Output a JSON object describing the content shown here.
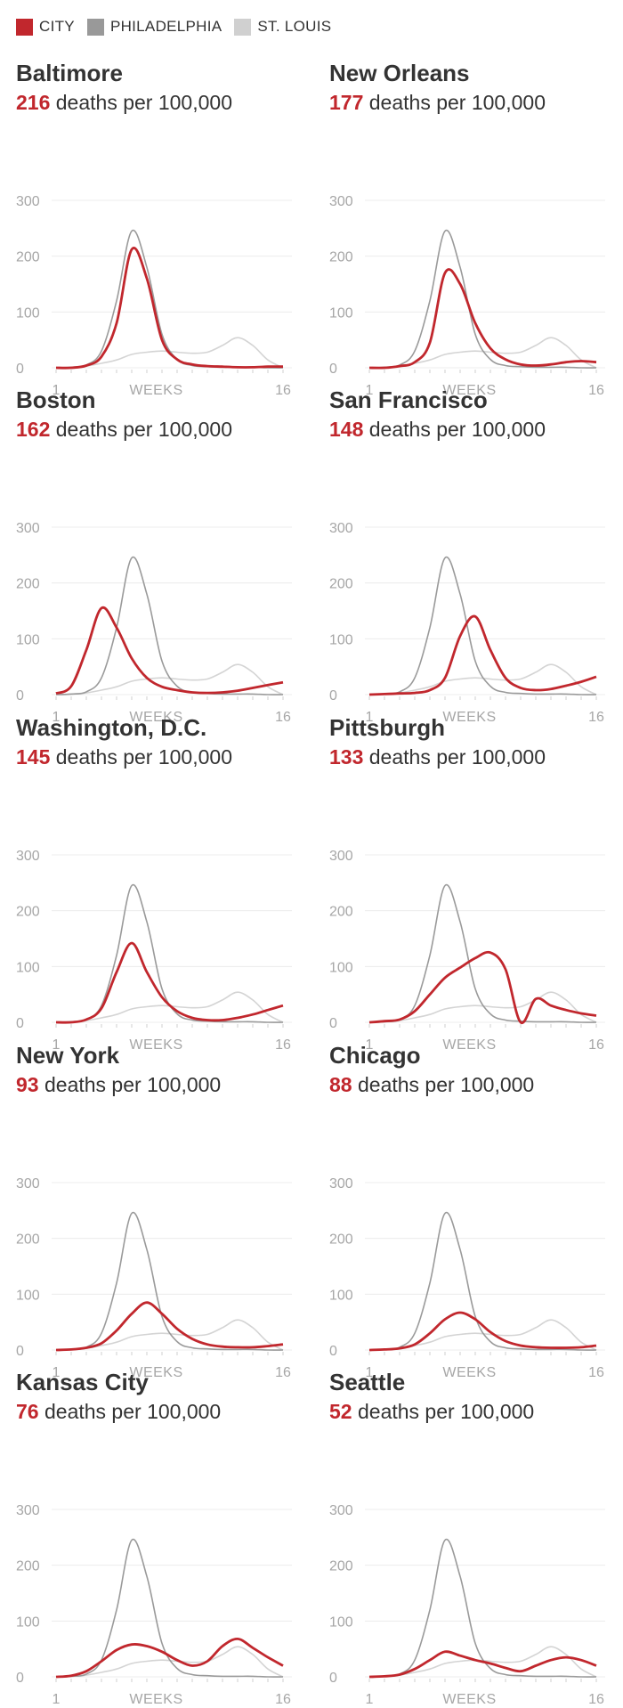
{
  "legend": {
    "items": [
      {
        "label": "CITY",
        "color": "#c1272d"
      },
      {
        "label": "PHILADELPHIA",
        "color": "#999999"
      },
      {
        "label": "ST. LOUIS",
        "color": "#d0d0d0"
      }
    ]
  },
  "deaths_unit": "deaths per 100,000",
  "axis": {
    "x_label": "WEEKS",
    "x_min_label": "1",
    "x_max_label": "16",
    "y_ticks": [
      "300",
      "200",
      "100",
      "0"
    ]
  },
  "cities": [
    {
      "name": "Baltimore",
      "rate": "216"
    },
    {
      "name": "New Orleans",
      "rate": "177"
    },
    {
      "name": "Boston",
      "rate": "162"
    },
    {
      "name": "San Francisco",
      "rate": "148"
    },
    {
      "name": "Washington, D.C.",
      "rate": "145"
    },
    {
      "name": "Pittsburgh",
      "rate": "133"
    },
    {
      "name": "New York",
      "rate": "93"
    },
    {
      "name": "Chicago",
      "rate": "88"
    },
    {
      "name": "Kansas City",
      "rate": "76"
    },
    {
      "name": "Seattle",
      "rate": "52"
    }
  ],
  "chart_data": {
    "type": "line",
    "x": [
      1,
      2,
      3,
      4,
      5,
      6,
      7,
      8,
      9,
      10,
      11,
      12,
      13,
      14,
      15,
      16
    ],
    "ylim": [
      0,
      300
    ],
    "xlabel": "WEEKS",
    "reference_series": [
      {
        "name": "PHILADELPHIA",
        "values": [
          0,
          1,
          5,
          30,
          120,
          245,
          180,
          60,
          15,
          4,
          2,
          1,
          1,
          1,
          0,
          0
        ]
      },
      {
        "name": "ST. LOUIS",
        "values": [
          0,
          1,
          3,
          8,
          14,
          24,
          28,
          30,
          28,
          26,
          28,
          40,
          54,
          40,
          14,
          0
        ]
      }
    ],
    "panels": [
      {
        "city": "Baltimore",
        "values": [
          0,
          0,
          4,
          20,
          80,
          212,
          160,
          50,
          15,
          6,
          3,
          2,
          1,
          1,
          2,
          2
        ]
      },
      {
        "city": "New Orleans",
        "values": [
          0,
          0,
          3,
          10,
          45,
          170,
          150,
          80,
          35,
          15,
          6,
          4,
          6,
          10,
          12,
          10
        ]
      },
      {
        "city": "Boston",
        "values": [
          2,
          15,
          80,
          155,
          120,
          65,
          30,
          14,
          8,
          4,
          3,
          4,
          7,
          12,
          17,
          22
        ]
      },
      {
        "city": "San Francisco",
        "values": [
          0,
          1,
          2,
          3,
          8,
          30,
          105,
          140,
          80,
          30,
          12,
          8,
          10,
          16,
          23,
          32
        ]
      },
      {
        "city": "Washington, D.C.",
        "values": [
          0,
          0,
          5,
          25,
          90,
          142,
          90,
          45,
          20,
          8,
          4,
          4,
          8,
          14,
          22,
          30
        ]
      },
      {
        "city": "Pittsburgh",
        "values": [
          0,
          2,
          5,
          20,
          50,
          80,
          98,
          115,
          125,
          95,
          0,
          42,
          30,
          22,
          16,
          12
        ]
      },
      {
        "city": "New York",
        "values": [
          0,
          1,
          4,
          12,
          35,
          65,
          85,
          65,
          38,
          20,
          10,
          6,
          5,
          5,
          7,
          10
        ]
      },
      {
        "city": "Chicago",
        "values": [
          0,
          1,
          3,
          10,
          30,
          55,
          67,
          55,
          32,
          16,
          8,
          5,
          4,
          4,
          5,
          8
        ]
      },
      {
        "city": "Kansas City",
        "values": [
          0,
          2,
          10,
          28,
          48,
          58,
          55,
          45,
          30,
          20,
          28,
          55,
          68,
          52,
          35,
          20
        ]
      },
      {
        "city": "Seattle",
        "values": [
          0,
          1,
          4,
          14,
          30,
          45,
          38,
          30,
          24,
          16,
          10,
          20,
          30,
          35,
          30,
          20
        ]
      }
    ]
  }
}
